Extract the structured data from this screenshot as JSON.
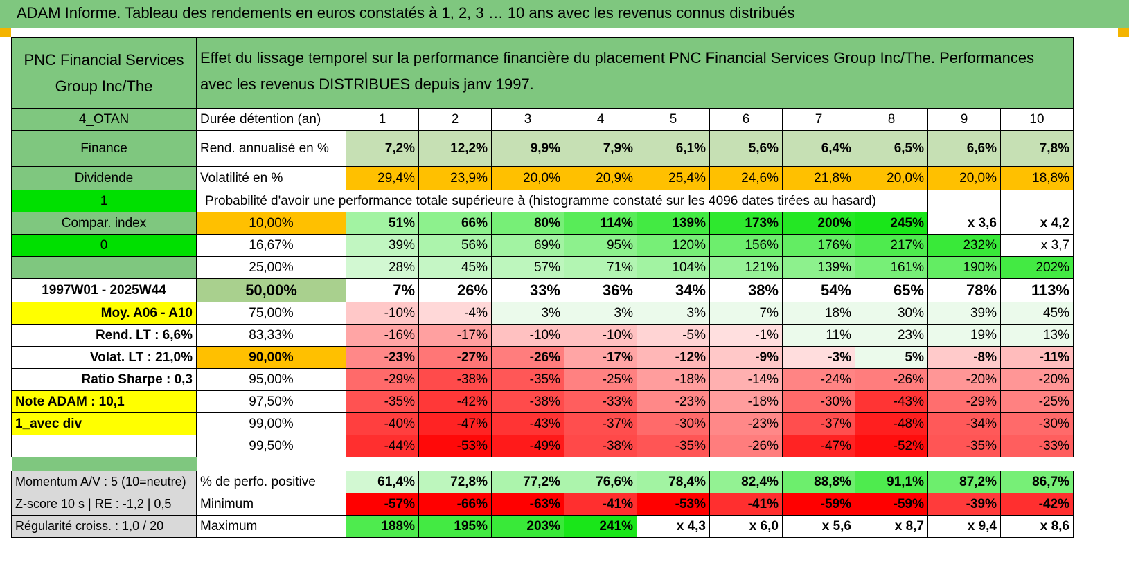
{
  "title": "ADAM Informe. Tableau des rendements en euros constatés à 1, 2, 3 … 10 ans avec les revenus connus distribués",
  "colors": {
    "header_green": "#7fc77f",
    "lime": "#00e000",
    "yellow": "#ffff00",
    "orange": "#ffc000",
    "label_red": "#d40000"
  },
  "header": {
    "asset_name": "PNC Financial Services Group Inc/The",
    "description": "Effet du lissage temporel sur la performance financière du placement PNC Financial Services Group Inc/The. Performances avec les revenus DISTRIBUES depuis janv 1997."
  },
  "side_labels": [
    "4_OTAN",
    "Finance",
    "Dividende",
    "1",
    "Compar. index",
    "0",
    "",
    "1997W01 - 2025W44",
    "Moy. A06 - A10",
    "Rend. LT :    6,6%",
    "Volat. LT :    21,0%",
    "Ratio Sharpe :     0,3",
    "Note ADAM : 10,1",
    "1_avec div",
    ""
  ],
  "holding_label": "Durée détention (an)",
  "years": [
    "1",
    "2",
    "3",
    "4",
    "5",
    "6",
    "7",
    "8",
    "9",
    "10"
  ],
  "returns": {
    "label": "Rend. annualisé en %",
    "values": [
      "7,2%",
      "12,2%",
      "9,9%",
      "7,9%",
      "6,1%",
      "5,6%",
      "6,4%",
      "6,5%",
      "6,6%",
      "7,8%"
    ]
  },
  "volatility": {
    "label": "Volatilité en %",
    "values": [
      "29,4%",
      "23,9%",
      "20,0%",
      "20,9%",
      "25,4%",
      "24,6%",
      "21,8%",
      "20,0%",
      "20,0%",
      "18,8%"
    ]
  },
  "probability_title": "Probabilité d'avoir une performance totale supérieure à (histogramme constaté sur les 4096 dates tirées au hasard)",
  "percentile_rows": [
    {
      "p": "10,00%",
      "values": [
        "51%",
        "66%",
        "80%",
        "114%",
        "139%",
        "173%",
        "200%",
        "245%",
        "x 3,6",
        "x 4,2"
      ]
    },
    {
      "p": "16,67%",
      "values": [
        "39%",
        "56%",
        "69%",
        "95%",
        "120%",
        "156%",
        "176%",
        "217%",
        "232%",
        "x 3,7"
      ]
    },
    {
      "p": "25,00%",
      "values": [
        "28%",
        "45%",
        "57%",
        "71%",
        "104%",
        "121%",
        "139%",
        "161%",
        "190%",
        "202%"
      ]
    },
    {
      "p": "50,00%",
      "values": [
        "7%",
        "26%",
        "33%",
        "36%",
        "34%",
        "38%",
        "54%",
        "65%",
        "78%",
        "113%"
      ]
    },
    {
      "p": "75,00%",
      "values": [
        "-10%",
        "-4%",
        "3%",
        "3%",
        "3%",
        "7%",
        "18%",
        "30%",
        "39%",
        "45%"
      ]
    },
    {
      "p": "83,33%",
      "values": [
        "-16%",
        "-17%",
        "-10%",
        "-10%",
        "-5%",
        "-1%",
        "11%",
        "23%",
        "19%",
        "13%"
      ]
    },
    {
      "p": "90,00%",
      "values": [
        "-23%",
        "-27%",
        "-26%",
        "-17%",
        "-12%",
        "-9%",
        "-3%",
        "5%",
        "-8%",
        "-11%"
      ]
    },
    {
      "p": "95,00%",
      "values": [
        "-29%",
        "-38%",
        "-35%",
        "-25%",
        "-18%",
        "-14%",
        "-24%",
        "-26%",
        "-20%",
        "-20%"
      ]
    },
    {
      "p": "97,50%",
      "values": [
        "-35%",
        "-42%",
        "-38%",
        "-33%",
        "-23%",
        "-18%",
        "-30%",
        "-43%",
        "-29%",
        "-25%"
      ]
    },
    {
      "p": "99,00%",
      "values": [
        "-40%",
        "-47%",
        "-43%",
        "-37%",
        "-30%",
        "-23%",
        "-37%",
        "-48%",
        "-34%",
        "-30%"
      ]
    },
    {
      "p": "99,50%",
      "values": [
        "-44%",
        "-53%",
        "-49%",
        "-38%",
        "-35%",
        "-26%",
        "-47%",
        "-52%",
        "-35%",
        "-33%"
      ]
    }
  ],
  "cell_shades": {
    "returns": [
      0.2,
      0.2,
      0.2,
      0.2,
      0.2,
      0.2,
      0.2,
      0.2,
      0.2,
      0.2
    ],
    "percentiles": [
      [
        0.35,
        0.45,
        0.55,
        0.7,
        0.8,
        0.9,
        0.95,
        1.0,
        -9,
        -9
      ],
      [
        0.2,
        0.3,
        0.35,
        0.45,
        0.55,
        0.6,
        0.65,
        0.75,
        0.85,
        -9
      ],
      [
        0.12,
        0.18,
        0.22,
        0.27,
        0.35,
        0.4,
        0.45,
        0.55,
        0.65,
        0.8
      ],
      [
        -8,
        -8,
        -8,
        -8,
        -8,
        -8,
        -8,
        -8,
        -8,
        -8
      ],
      [
        -0.15,
        -0.08,
        0,
        0,
        0,
        0,
        0,
        0,
        0,
        0
      ],
      [
        -0.3,
        -0.32,
        -0.18,
        -0.18,
        -0.1,
        -0.05,
        0,
        0,
        0,
        0
      ],
      [
        -0.42,
        -0.5,
        -0.47,
        -0.3,
        -0.22,
        -0.15,
        -0.06,
        0,
        -0.14,
        -0.2
      ],
      [
        -0.55,
        -0.68,
        -0.63,
        -0.45,
        -0.33,
        -0.25,
        -0.44,
        -0.47,
        -0.36,
        -0.36
      ],
      [
        -0.65,
        -0.76,
        -0.68,
        -0.6,
        -0.42,
        -0.33,
        -0.55,
        -0.78,
        -0.53,
        -0.45
      ],
      [
        -0.73,
        -0.85,
        -0.78,
        -0.67,
        -0.55,
        -0.42,
        -0.67,
        -0.87,
        -0.62,
        -0.55
      ],
      [
        -0.8,
        -0.96,
        -0.89,
        -0.69,
        -0.64,
        -0.47,
        -0.85,
        -0.94,
        -0.64,
        -0.6
      ]
    ],
    "positive": [
      0.12,
      0.22,
      0.3,
      0.3,
      0.35,
      0.42,
      0.6,
      0.75,
      0.6,
      0.55
    ],
    "minimum": [
      -1,
      -1,
      -1,
      -0.8,
      -1,
      -0.8,
      -1,
      -1,
      -0.75,
      -0.8
    ],
    "maximum": [
      0.75,
      0.8,
      0.85,
      1.0,
      -9,
      -9,
      -9,
      -9,
      -9,
      -9
    ]
  },
  "footer": [
    {
      "side": "Momentum A/V : 5 (10=neutre)",
      "label": "% de perfo. positive",
      "values": [
        "61,4%",
        "72,8%",
        "77,2%",
        "76,6%",
        "78,4%",
        "82,4%",
        "88,8%",
        "91,1%",
        "87,2%",
        "86,7%"
      ]
    },
    {
      "side": "Z-score 10 s | RE : -1,2 | 0,5",
      "label": "Minimum",
      "values": [
        "-57%",
        "-66%",
        "-63%",
        "-41%",
        "-53%",
        "-41%",
        "-59%",
        "-59%",
        "-39%",
        "-42%"
      ]
    },
    {
      "side": "Régularité croiss. : 1,0 / 20",
      "label": "Maximum",
      "values": [
        "188%",
        "195%",
        "203%",
        "241%",
        "x 4,3",
        "x 6,0",
        "x 5,6",
        "x 8,7",
        "x 9,4",
        "x 8,6"
      ]
    }
  ]
}
